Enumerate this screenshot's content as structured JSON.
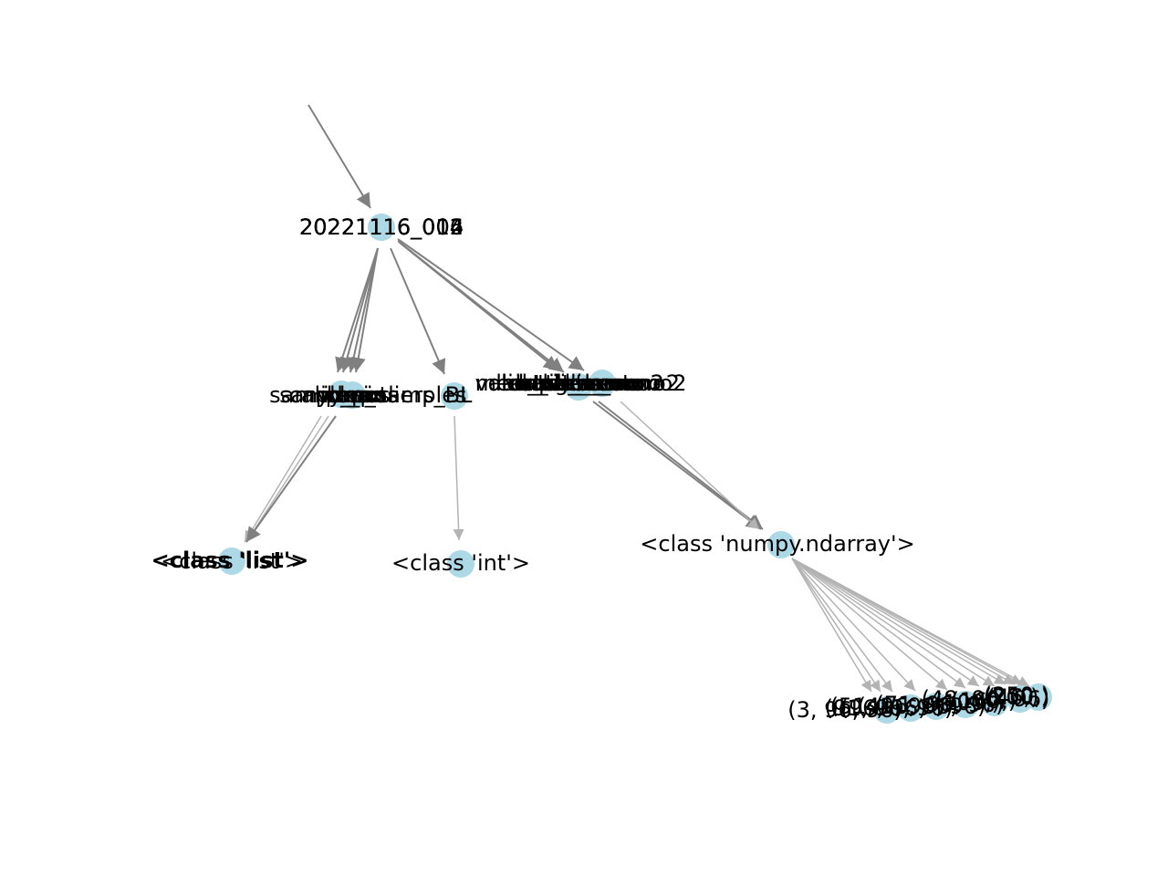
{
  "graph": {
    "root_node": {
      "overlapping_labels": [
        "20221116_004",
        "20221116_006",
        "20221116_012",
        "20221116_014"
      ]
    },
    "field_nodes": [
      {
        "group": "sample-fields",
        "overlapping_labels": [
          "samples",
          "sample_pos",
          "calib_pos",
          "idx",
          "ymax",
          "xmax",
          "ymin",
          "xmin"
        ]
      },
      {
        "group": "int-fields",
        "overlapping_labels": [
          "n_samples",
          "n_outliers_BL"
        ]
      },
      {
        "group": "array-fields",
        "overlapping_labels": [
          "dataset_mono",
          "mask_mono",
          "dataset_mono2",
          "mask_mono2",
          "valid_pixels",
          "histogram",
          "baseline",
          "mean_dataset",
          "outliers_mono",
          "outliers_mono2"
        ]
      }
    ],
    "type_nodes": {
      "list": "<class 'list'>",
      "list_bold_overlap": "<class 'list'>",
      "int": "<class 'int'>",
      "ndarray": "<class 'numpy.ndarray'>"
    },
    "shape_nodes": {
      "overlapping_labels": [
        "(3, 96, 96)",
        "(96, 96)",
        "(91, 96, 96)",
        "(51, 96, 96)",
        "(41, 96, 96)",
        "(71, 96, 96)",
        "(100,)",
        "(160,)",
        "(48, 96, 96)",
        "(46,)",
        "(200,)",
        "(250,)"
      ]
    }
  },
  "colors": {
    "node_fill": "#add8e6",
    "edge_dark": "#808080",
    "edge_light": "#b3b3b3",
    "text": "#000000"
  }
}
